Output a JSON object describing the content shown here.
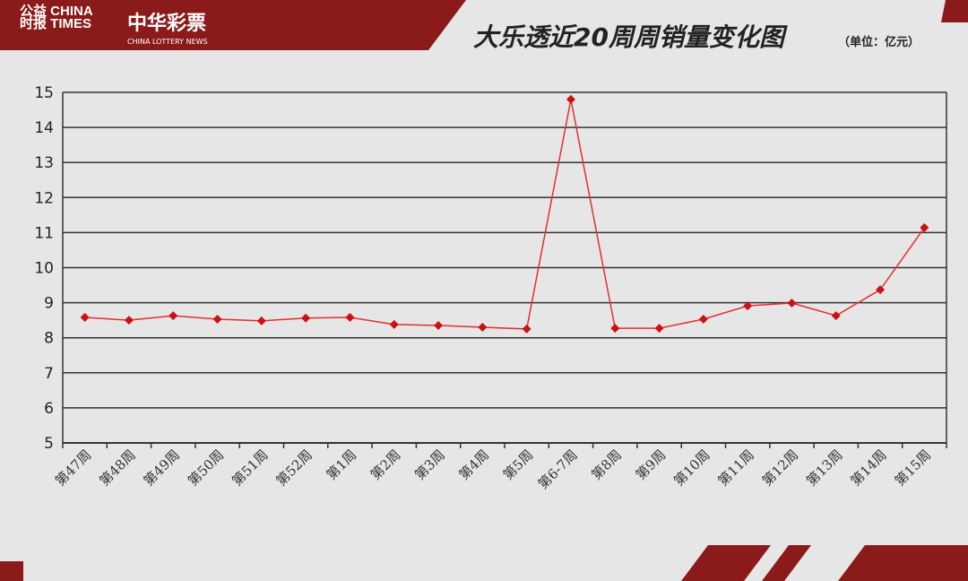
{
  "header": {
    "logo_text": "公益时报 CHINA PHILANTHROPY TIMES",
    "brand_cn": "中华彩票",
    "brand_en": "CHINA LOTTERY NEWS",
    "title": "大乐透近20周周销量变化图",
    "unit": "（单位：亿元）",
    "brand_color": "#8b1a1a"
  },
  "chart_data": {
    "type": "line",
    "title": "大乐透近20周周销量变化图",
    "unit": "亿元",
    "categories": [
      "第47周",
      "第48周",
      "第49周",
      "第50周",
      "第51周",
      "第52周",
      "第1周",
      "第2周",
      "第3周",
      "第4周",
      "第5周",
      "第6-7周",
      "第8周",
      "第9周",
      "第10周",
      "第11周",
      "第12周",
      "第13周",
      "第14周",
      "第15周"
    ],
    "values": [
      8.58,
      8.5,
      8.63,
      8.53,
      8.48,
      8.56,
      8.58,
      8.38,
      8.35,
      8.3,
      8.25,
      14.8,
      8.27,
      8.27,
      8.53,
      8.91,
      8.99,
      8.63,
      9.37,
      11.14
    ],
    "ylim": [
      5,
      15
    ],
    "yticks": [
      5,
      6,
      7,
      8,
      9,
      10,
      11,
      12,
      13,
      14,
      15
    ],
    "grid": true,
    "line_color": "#e03030",
    "marker_color": "#cc1111",
    "marker": "diamond"
  }
}
